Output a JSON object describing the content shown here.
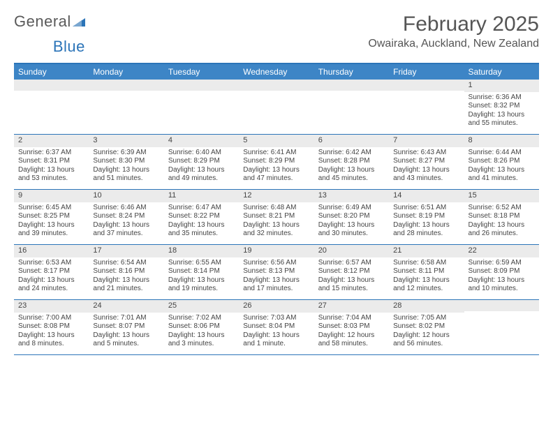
{
  "logo": {
    "word1": "General",
    "word2": "Blue"
  },
  "title": "February 2025",
  "location": "Owairaka, Auckland, New Zealand",
  "colors": {
    "header_bar": "#3d85c6",
    "top_border": "#2b74b8",
    "row_border": "#2b74b8",
    "daynum_bg": "#ebebeb",
    "text": "#444444",
    "logo_blue": "#2b74b8"
  },
  "day_names": [
    "Sunday",
    "Monday",
    "Tuesday",
    "Wednesday",
    "Thursday",
    "Friday",
    "Saturday"
  ],
  "weeks": [
    [
      {
        "num": "",
        "lines": []
      },
      {
        "num": "",
        "lines": []
      },
      {
        "num": "",
        "lines": []
      },
      {
        "num": "",
        "lines": []
      },
      {
        "num": "",
        "lines": []
      },
      {
        "num": "",
        "lines": []
      },
      {
        "num": "1",
        "lines": [
          "Sunrise: 6:36 AM",
          "Sunset: 8:32 PM",
          "Daylight: 13 hours and 55 minutes."
        ]
      }
    ],
    [
      {
        "num": "2",
        "lines": [
          "Sunrise: 6:37 AM",
          "Sunset: 8:31 PM",
          "Daylight: 13 hours and 53 minutes."
        ]
      },
      {
        "num": "3",
        "lines": [
          "Sunrise: 6:39 AM",
          "Sunset: 8:30 PM",
          "Daylight: 13 hours and 51 minutes."
        ]
      },
      {
        "num": "4",
        "lines": [
          "Sunrise: 6:40 AM",
          "Sunset: 8:29 PM",
          "Daylight: 13 hours and 49 minutes."
        ]
      },
      {
        "num": "5",
        "lines": [
          "Sunrise: 6:41 AM",
          "Sunset: 8:29 PM",
          "Daylight: 13 hours and 47 minutes."
        ]
      },
      {
        "num": "6",
        "lines": [
          "Sunrise: 6:42 AM",
          "Sunset: 8:28 PM",
          "Daylight: 13 hours and 45 minutes."
        ]
      },
      {
        "num": "7",
        "lines": [
          "Sunrise: 6:43 AM",
          "Sunset: 8:27 PM",
          "Daylight: 13 hours and 43 minutes."
        ]
      },
      {
        "num": "8",
        "lines": [
          "Sunrise: 6:44 AM",
          "Sunset: 8:26 PM",
          "Daylight: 13 hours and 41 minutes."
        ]
      }
    ],
    [
      {
        "num": "9",
        "lines": [
          "Sunrise: 6:45 AM",
          "Sunset: 8:25 PM",
          "Daylight: 13 hours and 39 minutes."
        ]
      },
      {
        "num": "10",
        "lines": [
          "Sunrise: 6:46 AM",
          "Sunset: 8:24 PM",
          "Daylight: 13 hours and 37 minutes."
        ]
      },
      {
        "num": "11",
        "lines": [
          "Sunrise: 6:47 AM",
          "Sunset: 8:22 PM",
          "Daylight: 13 hours and 35 minutes."
        ]
      },
      {
        "num": "12",
        "lines": [
          "Sunrise: 6:48 AM",
          "Sunset: 8:21 PM",
          "Daylight: 13 hours and 32 minutes."
        ]
      },
      {
        "num": "13",
        "lines": [
          "Sunrise: 6:49 AM",
          "Sunset: 8:20 PM",
          "Daylight: 13 hours and 30 minutes."
        ]
      },
      {
        "num": "14",
        "lines": [
          "Sunrise: 6:51 AM",
          "Sunset: 8:19 PM",
          "Daylight: 13 hours and 28 minutes."
        ]
      },
      {
        "num": "15",
        "lines": [
          "Sunrise: 6:52 AM",
          "Sunset: 8:18 PM",
          "Daylight: 13 hours and 26 minutes."
        ]
      }
    ],
    [
      {
        "num": "16",
        "lines": [
          "Sunrise: 6:53 AM",
          "Sunset: 8:17 PM",
          "Daylight: 13 hours and 24 minutes."
        ]
      },
      {
        "num": "17",
        "lines": [
          "Sunrise: 6:54 AM",
          "Sunset: 8:16 PM",
          "Daylight: 13 hours and 21 minutes."
        ]
      },
      {
        "num": "18",
        "lines": [
          "Sunrise: 6:55 AM",
          "Sunset: 8:14 PM",
          "Daylight: 13 hours and 19 minutes."
        ]
      },
      {
        "num": "19",
        "lines": [
          "Sunrise: 6:56 AM",
          "Sunset: 8:13 PM",
          "Daylight: 13 hours and 17 minutes."
        ]
      },
      {
        "num": "20",
        "lines": [
          "Sunrise: 6:57 AM",
          "Sunset: 8:12 PM",
          "Daylight: 13 hours and 15 minutes."
        ]
      },
      {
        "num": "21",
        "lines": [
          "Sunrise: 6:58 AM",
          "Sunset: 8:11 PM",
          "Daylight: 13 hours and 12 minutes."
        ]
      },
      {
        "num": "22",
        "lines": [
          "Sunrise: 6:59 AM",
          "Sunset: 8:09 PM",
          "Daylight: 13 hours and 10 minutes."
        ]
      }
    ],
    [
      {
        "num": "23",
        "lines": [
          "Sunrise: 7:00 AM",
          "Sunset: 8:08 PM",
          "Daylight: 13 hours and 8 minutes."
        ]
      },
      {
        "num": "24",
        "lines": [
          "Sunrise: 7:01 AM",
          "Sunset: 8:07 PM",
          "Daylight: 13 hours and 5 minutes."
        ]
      },
      {
        "num": "25",
        "lines": [
          "Sunrise: 7:02 AM",
          "Sunset: 8:06 PM",
          "Daylight: 13 hours and 3 minutes."
        ]
      },
      {
        "num": "26",
        "lines": [
          "Sunrise: 7:03 AM",
          "Sunset: 8:04 PM",
          "Daylight: 13 hours and 1 minute."
        ]
      },
      {
        "num": "27",
        "lines": [
          "Sunrise: 7:04 AM",
          "Sunset: 8:03 PM",
          "Daylight: 12 hours and 58 minutes."
        ]
      },
      {
        "num": "28",
        "lines": [
          "Sunrise: 7:05 AM",
          "Sunset: 8:02 PM",
          "Daylight: 12 hours and 56 minutes."
        ]
      },
      {
        "num": "",
        "lines": []
      }
    ]
  ]
}
